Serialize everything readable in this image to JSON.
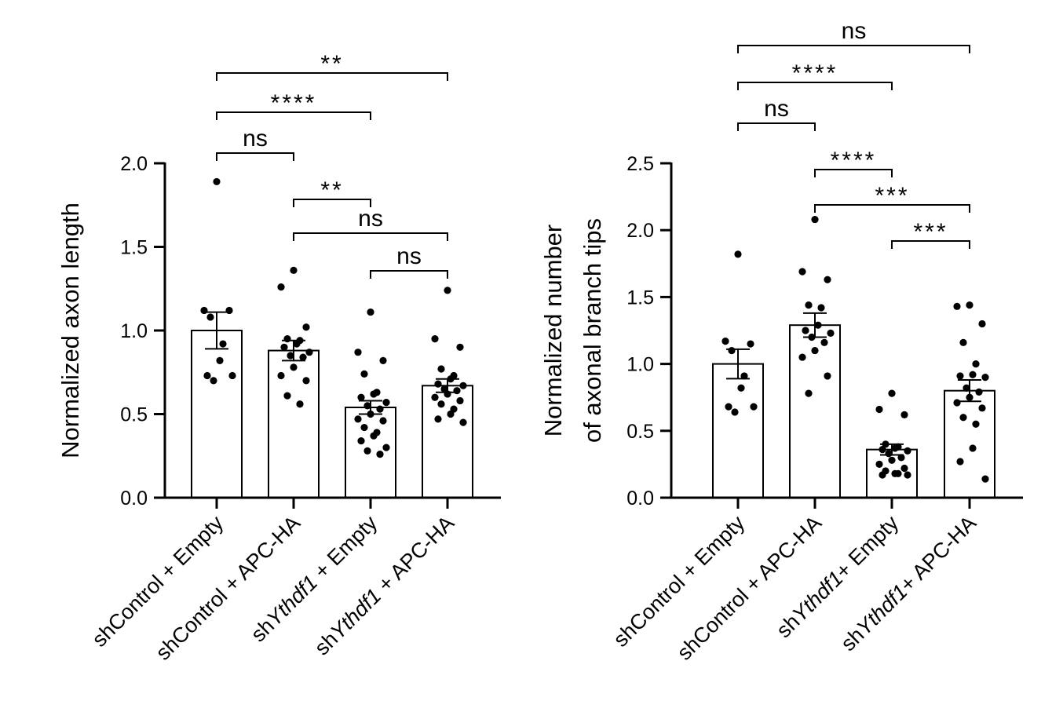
{
  "chart_data": [
    {
      "type": "bar",
      "ylabel": "Normalized axon length",
      "ylim": [
        0,
        2.0
      ],
      "yticks": [
        0.0,
        0.5,
        1.0,
        1.5,
        2.0
      ],
      "ytick_labels": [
        "0.0",
        "0.5",
        "1.0",
        "1.5",
        "2.0"
      ],
      "categories": [
        {
          "prefix": "shControl + Empty",
          "italic": "",
          "suffix": ""
        },
        {
          "prefix": "shControl + APC-HA",
          "italic": "",
          "suffix": ""
        },
        {
          "prefix": "sh",
          "italic": "Ythdf1",
          "suffix": " + Empty"
        },
        {
          "prefix": "sh",
          "italic": "Ythdf1",
          "suffix": " + APC-HA"
        }
      ],
      "bars": [
        {
          "mean": 1.0,
          "sem": 0.11,
          "points": [
            1.89,
            1.12,
            1.12,
            1.08,
            0.92,
            0.82,
            0.73,
            0.73,
            0.7
          ]
        },
        {
          "mean": 0.88,
          "sem": 0.06,
          "points": [
            1.36,
            1.26,
            1.02,
            0.95,
            0.94,
            0.92,
            0.9,
            0.87,
            0.85,
            0.84,
            0.78,
            0.73,
            0.7,
            0.61,
            0.56
          ]
        },
        {
          "mean": 0.54,
          "sem": 0.04,
          "points": [
            1.11,
            0.87,
            0.82,
            0.74,
            0.63,
            0.62,
            0.6,
            0.57,
            0.55,
            0.53,
            0.5,
            0.47,
            0.46,
            0.42,
            0.39,
            0.37,
            0.34,
            0.3,
            0.28,
            0.26
          ]
        },
        {
          "mean": 0.67,
          "sem": 0.04,
          "points": [
            1.24,
            0.95,
            0.9,
            0.77,
            0.73,
            0.71,
            0.68,
            0.67,
            0.65,
            0.64,
            0.62,
            0.6,
            0.58,
            0.56,
            0.53,
            0.5,
            0.47,
            0.45
          ]
        }
      ],
      "comparisons": [
        {
          "from": 0,
          "to": 3,
          "label": "**"
        },
        {
          "from": 0,
          "to": 2,
          "label": "****"
        },
        {
          "from": 0,
          "to": 1,
          "label": "ns"
        },
        {
          "from": 1,
          "to": 2,
          "label": "**"
        },
        {
          "from": 1,
          "to": 3,
          "label": "ns"
        },
        {
          "from": 2,
          "to": 3,
          "label": "ns"
        }
      ]
    },
    {
      "type": "bar",
      "ylabel_lines": [
        "Normalized number",
        "of axonal branch tips"
      ],
      "ylim": [
        0,
        2.5
      ],
      "yticks": [
        0.0,
        0.5,
        1.0,
        1.5,
        2.0,
        2.5
      ],
      "ytick_labels": [
        "0.0",
        "0.5",
        "1.0",
        "1.5",
        "2.0",
        "2.5"
      ],
      "categories": [
        {
          "prefix": "shControl + Empty",
          "italic": "",
          "suffix": ""
        },
        {
          "prefix": "shControl + APC-HA",
          "italic": "",
          "suffix": ""
        },
        {
          "prefix": "sh",
          "italic": "Ythdf1",
          "suffix": "+ Empty"
        },
        {
          "prefix": "sh",
          "italic": "Ythdf1",
          "suffix": "+ APC-HA"
        }
      ],
      "bars": [
        {
          "mean": 1.0,
          "sem": 0.11,
          "points": [
            1.82,
            1.17,
            1.15,
            1.1,
            0.91,
            0.82,
            0.68,
            0.68,
            0.64
          ]
        },
        {
          "mean": 1.29,
          "sem": 0.09,
          "points": [
            2.08,
            1.69,
            1.63,
            1.44,
            1.42,
            1.29,
            1.25,
            1.23,
            1.2,
            1.16,
            1.1,
            1.05,
            0.91,
            0.78
          ]
        },
        {
          "mean": 0.36,
          "sem": 0.04,
          "points": [
            0.78,
            0.66,
            0.62,
            0.4,
            0.38,
            0.37,
            0.36,
            0.35,
            0.33,
            0.3,
            0.28,
            0.25,
            0.22,
            0.2,
            0.18,
            0.18,
            0.17,
            0.17
          ]
        },
        {
          "mean": 0.8,
          "sem": 0.08,
          "points": [
            1.44,
            1.43,
            1.3,
            1.16,
            1.0,
            0.92,
            0.91,
            0.9,
            0.82,
            0.79,
            0.75,
            0.71,
            0.67,
            0.6,
            0.55,
            0.37,
            0.27,
            0.14
          ]
        }
      ],
      "comparisons": [
        {
          "from": 0,
          "to": 3,
          "label": "ns"
        },
        {
          "from": 0,
          "to": 2,
          "label": "****"
        },
        {
          "from": 0,
          "to": 1,
          "label": "ns"
        },
        {
          "from": 1,
          "to": 2,
          "label": "****"
        },
        {
          "from": 1,
          "to": 3,
          "label": "***"
        },
        {
          "from": 2,
          "to": 3,
          "label": "***"
        }
      ]
    }
  ]
}
